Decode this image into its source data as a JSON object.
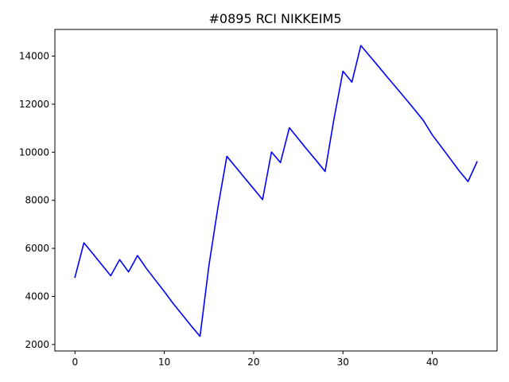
{
  "chart_data": {
    "type": "line",
    "title": "#0895 RCI NIKKEIM5",
    "xlabel": "",
    "ylabel": "",
    "xlim": [
      -2.25,
      47.25
    ],
    "ylim": [
      1730,
      15110
    ],
    "xticks": [
      0,
      10,
      20,
      30,
      40
    ],
    "yticks": [
      2000,
      4000,
      6000,
      8000,
      10000,
      12000,
      14000
    ],
    "grid": false,
    "legend": "none",
    "series": [
      {
        "color": "#0000ff",
        "x": [
          0,
          1,
          2,
          3,
          4,
          5,
          6,
          7,
          8,
          9,
          10,
          11,
          12,
          13,
          14,
          15,
          16,
          17,
          18,
          19,
          20,
          21,
          22,
          23,
          24,
          25,
          26,
          27,
          28,
          29,
          30,
          31,
          32,
          33,
          34,
          35,
          36,
          37,
          38,
          39,
          40,
          41,
          42,
          43,
          44,
          45
        ],
        "y": [
          4800,
          6230,
          5780,
          5320,
          4860,
          5530,
          5020,
          5700,
          5160,
          4680,
          4200,
          3700,
          3240,
          2780,
          2340,
          5300,
          7700,
          9830,
          9380,
          8930,
          8480,
          8030,
          10010,
          9570,
          11020,
          10560,
          10100,
          9660,
          9200,
          11400,
          13370,
          12920,
          14440,
          14000,
          13560,
          13110,
          12670,
          12230,
          11780,
          11320,
          10720,
          10230,
          9730,
          9230,
          8780,
          9600
        ]
      }
    ]
  }
}
